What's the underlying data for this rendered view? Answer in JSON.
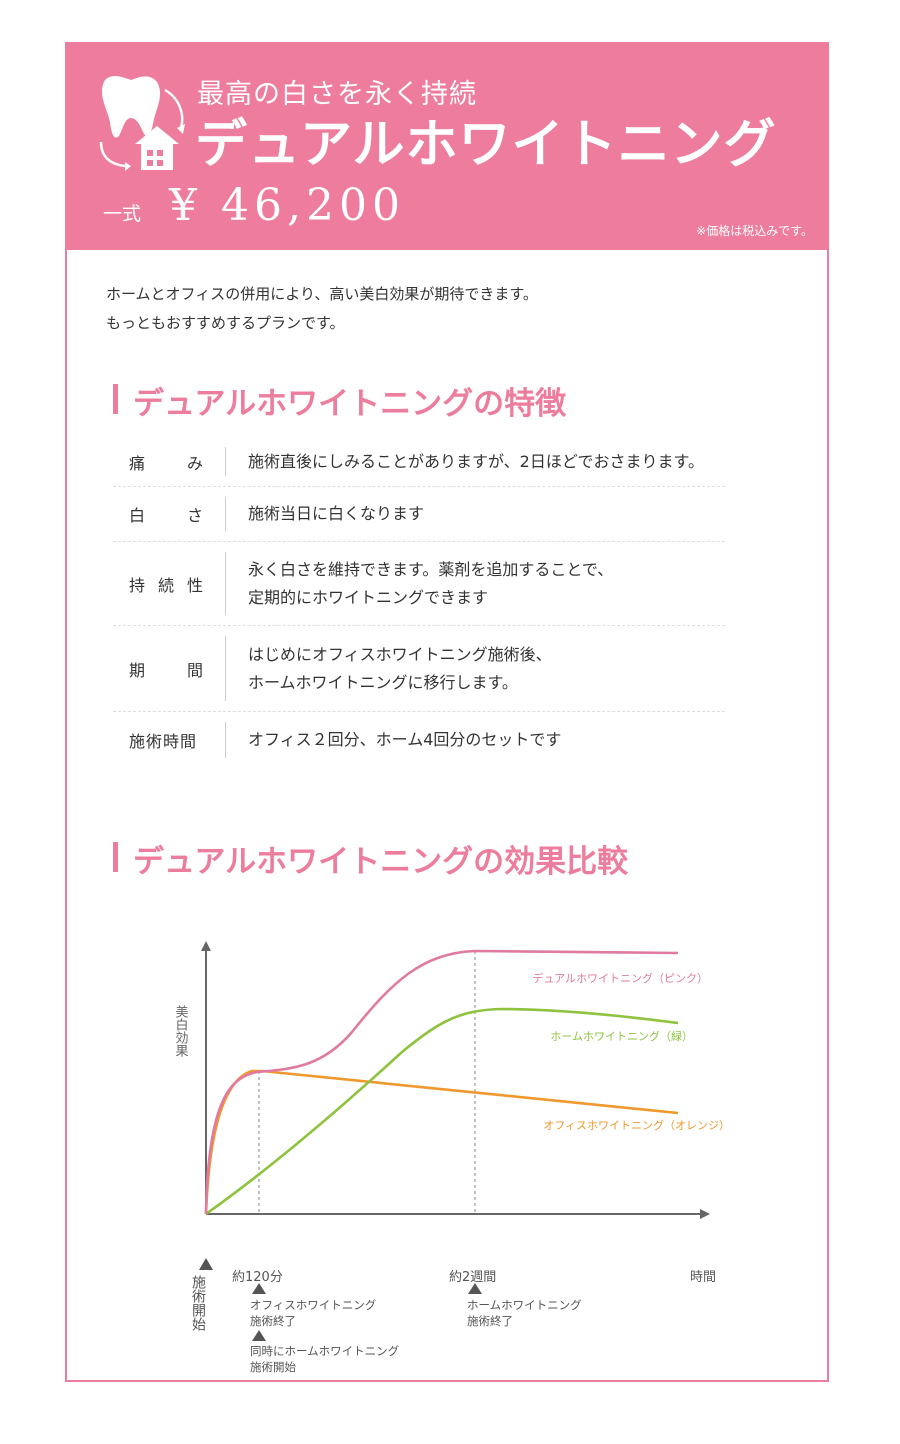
{
  "header": {
    "subtitle": "最高の白さを永く持続",
    "title": "デュアルホワイトニング",
    "price_label": "一式",
    "price": "¥ 46,200",
    "tax_note": "※価格は税込みです。",
    "logo_icons": [
      "tooth-icon",
      "house-icon",
      "cycle-arrows-icon"
    ],
    "color": "#ee7c9d"
  },
  "intro": {
    "line1": "ホームとオフィスの併用により、高い美白効果が期待できます。",
    "line2": "もっともおすすめするプランです。"
  },
  "features": {
    "heading": "デュアルホワイトニングの特徴",
    "rows": [
      {
        "label": [
          "痛",
          "み"
        ],
        "lines": [
          "施術直後にしみることがありますが、2日ほどでおさまります。"
        ]
      },
      {
        "label": [
          "白",
          "さ"
        ],
        "lines": [
          "施術当日に白くなります"
        ]
      },
      {
        "label": [
          "持",
          "続",
          "性"
        ],
        "lines": [
          "永く白さを維持できます。薬剤を追加することで、",
          "定期的にホワイトニングできます"
        ]
      },
      {
        "label": [
          "期",
          "間"
        ],
        "lines": [
          "はじめにオフィスホワイトニング施術後、",
          "ホームホワイトニングに移行します。"
        ]
      },
      {
        "label": [
          "施術時間"
        ],
        "lines": [
          "オフィス２回分、ホーム4回分のセットです"
        ]
      }
    ]
  },
  "comparison": {
    "heading": "デュアルホワイトニングの効果比較",
    "chart_data": {
      "type": "line",
      "ylabel": "美白効果",
      "xlabel": "時間",
      "x_ticks": [
        "約120分",
        "約2週間"
      ],
      "start_label": "施術開始",
      "annotations": [
        {
          "lines": [
            "オフィスホワイトニング",
            "施術終了"
          ]
        },
        {
          "lines": [
            "同時にホームホワイトニング",
            "施術開始"
          ]
        },
        {
          "lines": [
            "ホームホワイトニング",
            "施術終了"
          ]
        }
      ],
      "series": [
        {
          "name": "デュアルホワイトニング（ピンク）",
          "color": "#e07aa0"
        },
        {
          "name": "ホームホワイトニング（緑）",
          "color": "#8fc23f"
        },
        {
          "name": "オフィスホワイトニング（オレンジ）",
          "color": "#f0982d"
        }
      ]
    }
  }
}
